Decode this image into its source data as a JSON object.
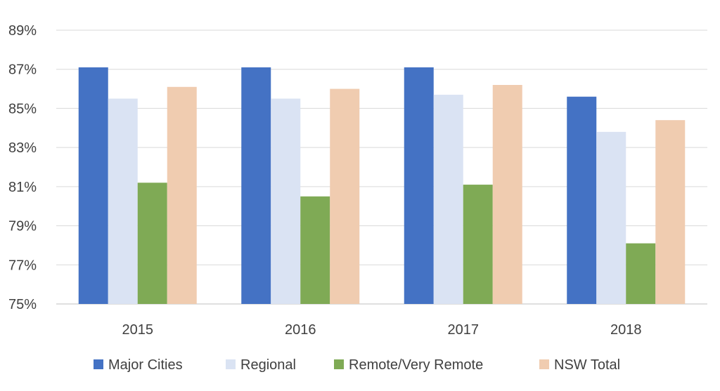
{
  "chart_data": {
    "type": "bar",
    "categories": [
      "2015",
      "2016",
      "2017",
      "2018"
    ],
    "series": [
      {
        "name": "Major Cities",
        "color": "#4472C4",
        "values": [
          87.1,
          87.1,
          87.1,
          85.6
        ]
      },
      {
        "name": "Regional",
        "color": "#DAE3F3",
        "values": [
          85.5,
          85.5,
          85.7,
          83.8
        ]
      },
      {
        "name": "Remote/Very Remote",
        "color": "#7FAA55",
        "values": [
          81.2,
          80.5,
          81.1,
          78.1
        ]
      },
      {
        "name": "NSW Total",
        "color": "#F0CCB0",
        "values": [
          86.1,
          86.0,
          86.2,
          84.4
        ]
      }
    ],
    "ylim": [
      75,
      89
    ],
    "yticks": [
      75,
      77,
      79,
      81,
      83,
      85,
      87,
      89
    ],
    "ytick_labels": [
      "75%",
      "77%",
      "79%",
      "81%",
      "83%",
      "85%",
      "87%",
      "89%"
    ],
    "grid": true,
    "legend_position": "bottom"
  }
}
